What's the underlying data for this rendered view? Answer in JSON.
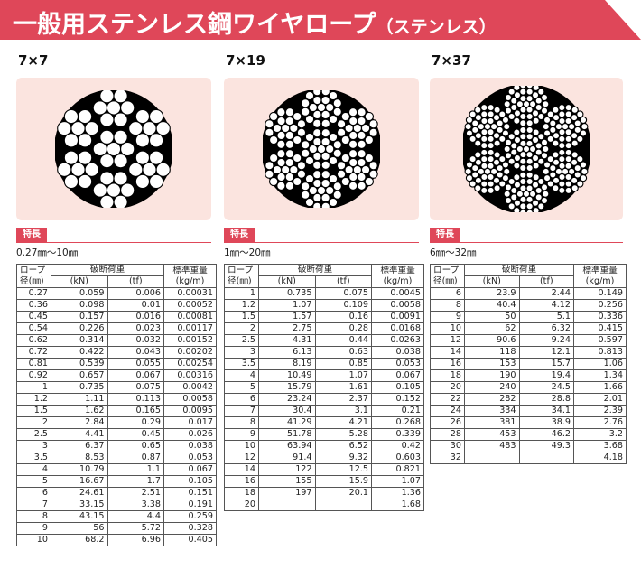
{
  "header": {
    "title": "一般用ステンレス鋼ワイヤロープ",
    "subtitle": "（ステンレス）",
    "color": "#df4759"
  },
  "feature_label": "特長",
  "columns_header": {
    "diameter": "ロープ径(㎜)",
    "diameter_top": "ロープ",
    "diameter_bottom": "径(㎜)",
    "breaking_load": "破断荷重",
    "kn": "(kN)",
    "tf": "(tf)",
    "weight": "標準重量",
    "weight_unit": "(kg/m)"
  },
  "products": [
    {
      "name": "7×7",
      "range": "0.27㎜～10㎜",
      "rows": [
        [
          "0.27",
          "0.059",
          "0.006",
          "0.00031"
        ],
        [
          "0.36",
          "0.098",
          "0.01",
          "0.00052"
        ],
        [
          "0.45",
          "0.157",
          "0.016",
          "0.00081"
        ],
        [
          "0.54",
          "0.226",
          "0.023",
          "0.00117"
        ],
        [
          "0.62",
          "0.314",
          "0.032",
          "0.00152"
        ],
        [
          "0.72",
          "0.422",
          "0.043",
          "0.00202"
        ],
        [
          "0.81",
          "0.539",
          "0.055",
          "0.00254"
        ],
        [
          "0.92",
          "0.657",
          "0.067",
          "0.00316"
        ],
        [
          "1",
          "0.735",
          "0.075",
          "0.0042"
        ],
        [
          "1.2",
          "1.11",
          "0.113",
          "0.0058"
        ],
        [
          "1.5",
          "1.62",
          "0.165",
          "0.0095"
        ],
        [
          "2",
          "2.84",
          "0.29",
          "0.017"
        ],
        [
          "2.5",
          "4.41",
          "0.45",
          "0.026"
        ],
        [
          "3",
          "6.37",
          "0.65",
          "0.038"
        ],
        [
          "3.5",
          "8.53",
          "0.87",
          "0.053"
        ],
        [
          "4",
          "10.79",
          "1.1",
          "0.067"
        ],
        [
          "5",
          "16.67",
          "1.7",
          "0.105"
        ],
        [
          "6",
          "24.61",
          "2.51",
          "0.151"
        ],
        [
          "7",
          "33.15",
          "3.38",
          "0.191"
        ],
        [
          "8",
          "43.15",
          "4.4",
          "0.259"
        ],
        [
          "9",
          "56",
          "5.72",
          "0.328"
        ],
        [
          "10",
          "68.2",
          "6.96",
          "0.405"
        ]
      ]
    },
    {
      "name": "7×19",
      "range": "1㎜～20㎜",
      "rows": [
        [
          "1",
          "0.735",
          "0.075",
          "0.0045"
        ],
        [
          "1.2",
          "1.07",
          "0.109",
          "0.0058"
        ],
        [
          "1.5",
          "1.57",
          "0.16",
          "0.0091"
        ],
        [
          "2",
          "2.75",
          "0.28",
          "0.0168"
        ],
        [
          "2.5",
          "4.31",
          "0.44",
          "0.0263"
        ],
        [
          "3",
          "6.13",
          "0.63",
          "0.038"
        ],
        [
          "3.5",
          "8.19",
          "0.85",
          "0.053"
        ],
        [
          "4",
          "10.49",
          "1.07",
          "0.067"
        ],
        [
          "5",
          "15.79",
          "1.61",
          "0.105"
        ],
        [
          "6",
          "23.24",
          "2.37",
          "0.152"
        ],
        [
          "7",
          "30.4",
          "3.1",
          "0.21"
        ],
        [
          "8",
          "41.29",
          "4.21",
          "0.268"
        ],
        [
          "9",
          "51.78",
          "5.28",
          "0.339"
        ],
        [
          "10",
          "63.94",
          "6.52",
          "0.42"
        ],
        [
          "12",
          "91.4",
          "9.32",
          "0.603"
        ],
        [
          "14",
          "122",
          "12.5",
          "0.821"
        ],
        [
          "16",
          "155",
          "15.9",
          "1.07"
        ],
        [
          "18",
          "197",
          "20.1",
          "1.36"
        ],
        [
          "20",
          "",
          "",
          "1.68"
        ]
      ]
    },
    {
      "name": "7×37",
      "range": "6㎜～32㎜",
      "rows": [
        [
          "6",
          "23.9",
          "2.44",
          "0.149"
        ],
        [
          "8",
          "40.4",
          "4.12",
          "0.256"
        ],
        [
          "9",
          "50",
          "5.1",
          "0.336"
        ],
        [
          "10",
          "62",
          "6.32",
          "0.415"
        ],
        [
          "12",
          "90.6",
          "9.24",
          "0.597"
        ],
        [
          "14",
          "118",
          "12.1",
          "0.813"
        ],
        [
          "16",
          "153",
          "15.7",
          "1.06"
        ],
        [
          "18",
          "190",
          "19.4",
          "1.34"
        ],
        [
          "20",
          "240",
          "24.5",
          "1.66"
        ],
        [
          "22",
          "282",
          "28.8",
          "2.01"
        ],
        [
          "24",
          "334",
          "34.1",
          "2.39"
        ],
        [
          "26",
          "381",
          "38.9",
          "2.76"
        ],
        [
          "28",
          "453",
          "46.2",
          "3.2"
        ],
        [
          "30",
          "483",
          "49.3",
          "3.68"
        ],
        [
          "32",
          "",
          "",
          "4.18"
        ]
      ]
    }
  ]
}
